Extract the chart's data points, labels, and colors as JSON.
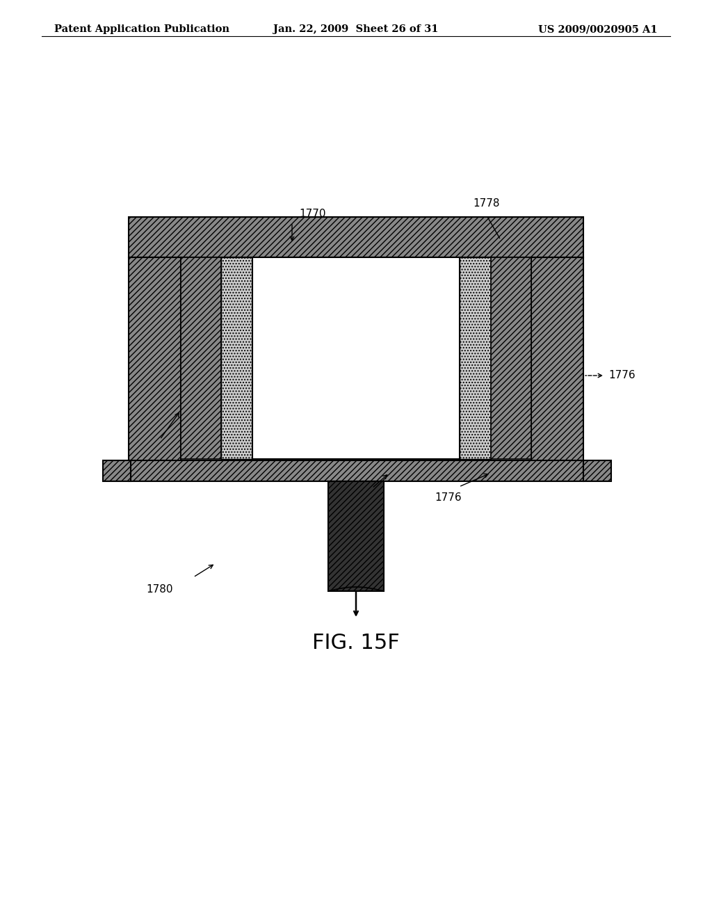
{
  "bg_color": "#ffffff",
  "header_left": "Patent Application Publication",
  "header_center": "Jan. 22, 2009  Sheet 26 of 31",
  "header_right": "US 2009/0020905 A1",
  "fig_label": "FIG. 15F",
  "outer_hatch": "////",
  "inner_hatch": "....",
  "stem_hatch": "////",
  "outer_fc": "#aaaaaa",
  "inner_fc": "#cccccc",
  "stem_fc": "#555555"
}
